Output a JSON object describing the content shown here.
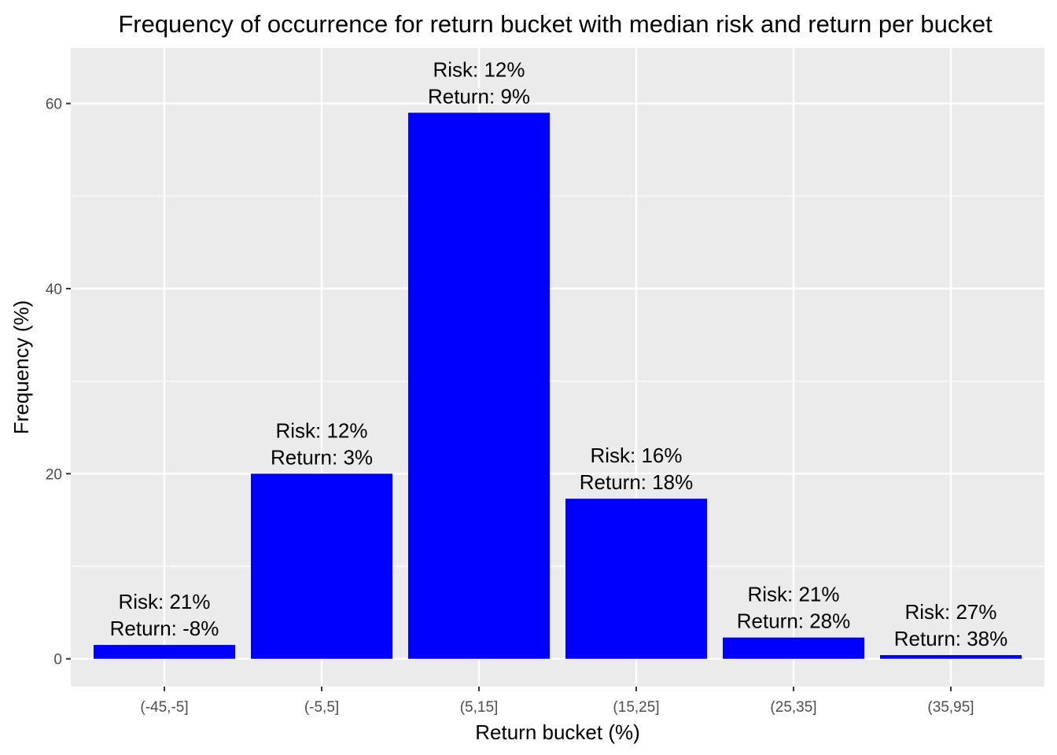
{
  "chart_data": {
    "type": "bar",
    "title": "Frequency of occurrence for return bucket with median risk and return per bucket",
    "xlabel": "Return bucket (%)",
    "ylabel": "Frequency (%)",
    "categories": [
      "(-45,-5]",
      "(-5,5]",
      "(5,15]",
      "(15,25]",
      "(25,35]",
      "(35,95]"
    ],
    "values": [
      1.5,
      20,
      59,
      17.3,
      2.3,
      0.4
    ],
    "bar_labels": [
      {
        "risk": "Risk: 21%",
        "return": "Return: -8%"
      },
      {
        "risk": "Risk: 12%",
        "return": "Return: 3%"
      },
      {
        "risk": "Risk: 12%",
        "return": "Return: 9%"
      },
      {
        "risk": "Risk: 16%",
        "return": "Return: 18%"
      },
      {
        "risk": "Risk: 21%",
        "return": "Return: 28%"
      },
      {
        "risk": "Risk: 27%",
        "return": "Return: 38%"
      }
    ],
    "yticks": [
      0,
      20,
      40,
      60
    ],
    "ylim": [
      -3,
      66
    ],
    "grid": true,
    "bar_color": "#0000ff",
    "panel_color": "#ebebeb",
    "gridline_color": "#ffffff"
  }
}
